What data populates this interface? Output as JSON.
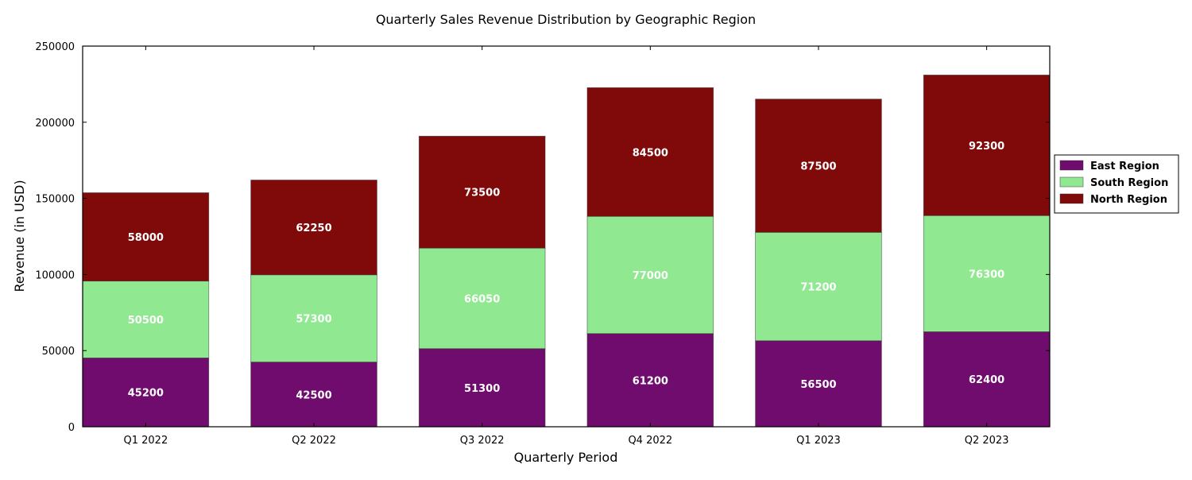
{
  "chart_data": {
    "type": "bar",
    "stacked": true,
    "title": "Quarterly Sales Revenue Distribution by Geographic Region",
    "xlabel": "Quarterly Period",
    "ylabel": "Revenue (in USD)",
    "ylim": [
      0,
      250000
    ],
    "yticks": [
      0,
      50000,
      100000,
      150000,
      200000,
      250000
    ],
    "categories": [
      "Q1 2022",
      "Q2 2022",
      "Q3 2022",
      "Q4 2022",
      "Q1 2023",
      "Q2 2023"
    ],
    "series": [
      {
        "name": "East Region",
        "color": "#6f0c6d",
        "values": [
          45200,
          42500,
          51300,
          61200,
          56500,
          62400
        ]
      },
      {
        "name": "South Region",
        "color": "#90e890",
        "values": [
          50500,
          57300,
          66050,
          77000,
          71200,
          76300
        ]
      },
      {
        "name": "North Region",
        "color": "#800a0a",
        "values": [
          58000,
          62250,
          73500,
          84500,
          87500,
          92300
        ]
      }
    ],
    "grid": false,
    "legend_position": "right"
  }
}
